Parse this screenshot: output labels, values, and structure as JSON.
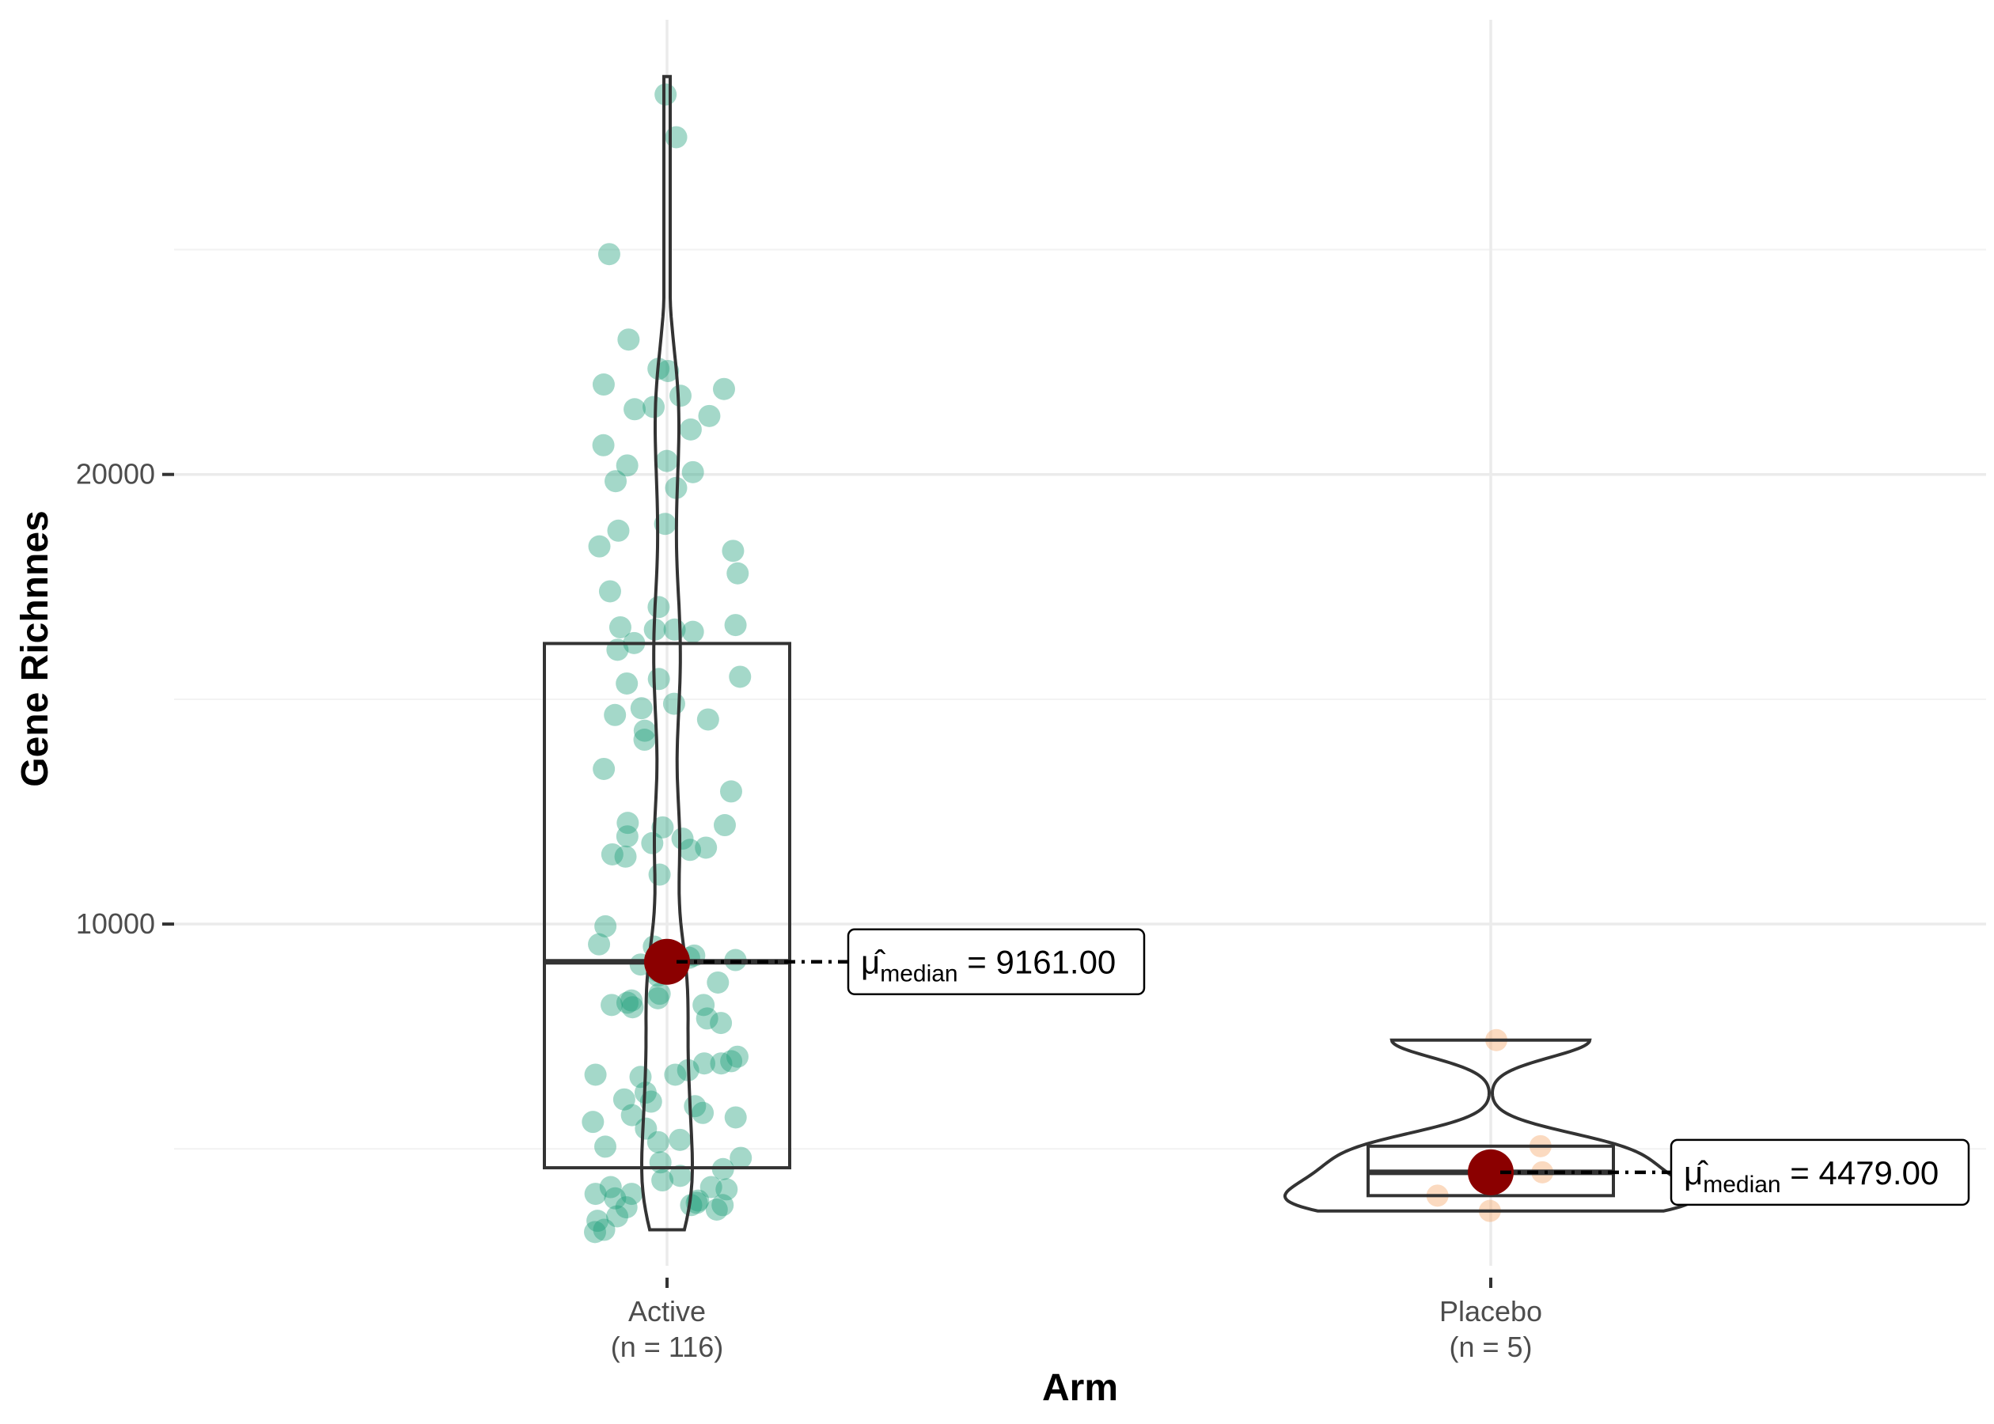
{
  "chart_data": {
    "type": "violin-box-scatter",
    "title": "",
    "xlabel": "Arm",
    "ylabel": "Gene Richnnes",
    "ylim": [
      2400,
      30200
    ],
    "y_ticks": [
      10000,
      20000
    ],
    "y_tick_labels": [
      "10000",
      "20000"
    ],
    "grid": true,
    "colors": {
      "active": "#1b9e77",
      "placebo": "#f4a261",
      "median_point": "#8b0000",
      "outline": "#333333",
      "grid": "#ebebeb"
    },
    "groups": [
      {
        "name": "Active",
        "tick_label": "Active",
        "n_label": "(n = 116)",
        "color": "#1b9e77",
        "box": {
          "q1": 4580,
          "median": 9161,
          "q3": 16240,
          "min": 3200,
          "max": 28850
        },
        "median_label": "9161.00",
        "points": [
          28450,
          27500,
          24900,
          23000,
          22350,
          22300,
          22000,
          21900,
          21750,
          21500,
          21450,
          21300,
          21000,
          20650,
          20300,
          20200,
          20050,
          19850,
          19700,
          18900,
          18750,
          18400,
          18300,
          17800,
          17400,
          17050,
          16650,
          16600,
          16550,
          16550,
          16500,
          16250,
          16100,
          15500,
          15450,
          15350,
          14900,
          14800,
          14650,
          14550,
          14300,
          14100,
          13450,
          12950,
          12250,
          12200,
          12150,
          11950,
          11900,
          11800,
          11700,
          11650,
          11550,
          11500,
          11100,
          9950,
          9550,
          9500,
          9300,
          9250,
          9200,
          9100,
          8950,
          8900,
          8850,
          8700,
          8450,
          8350,
          8300,
          8250,
          8200,
          8200,
          8150,
          7900,
          7800,
          7050,
          6950,
          6900,
          6900,
          6750,
          6650,
          6650,
          6600,
          6250,
          6100,
          6050,
          5950,
          5800,
          5750,
          5700,
          5600,
          5450,
          5200,
          5150,
          5050,
          4800,
          4700,
          4550,
          4400,
          4300,
          4150,
          4150,
          4100,
          4000,
          4000,
          3900,
          3850,
          3800,
          3750,
          3750,
          3700,
          3650,
          3500,
          3400,
          3200,
          3150
        ]
      },
      {
        "name": "Placebo",
        "tick_label": "Placebo",
        "n_label": "(n = 5)",
        "color": "#f4a261",
        "box": {
          "q1": 3960,
          "median": 4479,
          "q3": 5060,
          "min": 3620,
          "max": 7420
        },
        "median_label": "4479.00",
        "points": [
          7420,
          5060,
          4479,
          3960,
          3620
        ]
      }
    ],
    "stat_symbol": "μ̂",
    "stat_subscript": "median",
    "stat_equals": "="
  }
}
